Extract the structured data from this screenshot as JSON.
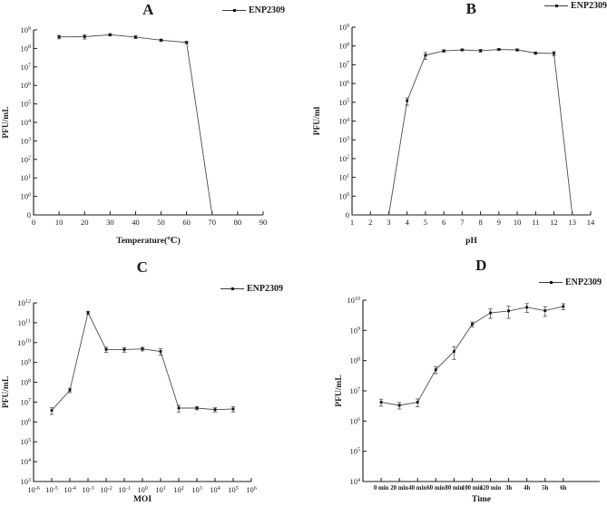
{
  "figure": {
    "background": "#ffffff",
    "axis_color": "#1a1a1a",
    "line_color": "#4d4d4d",
    "marker_color": "#111111",
    "text_color": "#1a1a1a"
  },
  "chart_data": [
    {
      "id": "panel-a",
      "type": "line",
      "title": "A",
      "legend": "ENP2309",
      "xlabel": "Temperature(℃)",
      "ylabel": "PFU/mL",
      "x_axis": {
        "type": "linear",
        "min": 0,
        "max": 90,
        "tick_step": 10
      },
      "y_axis": {
        "type": "log",
        "min_exp": 0,
        "max_exp": 9,
        "zero_tick": true
      },
      "x": [
        10,
        20,
        30,
        40,
        50,
        60,
        70
      ],
      "values": [
        420000000.0,
        430000000.0,
        550000000.0,
        410000000.0,
        280000000.0,
        210000000.0,
        0
      ],
      "errors": [
        90000000.0,
        110000000.0,
        80000000.0,
        70000000.0,
        40000000.0,
        30000000.0,
        0
      ],
      "grid": false,
      "legend_position": "top-right"
    },
    {
      "id": "panel-b",
      "type": "line",
      "title": "B",
      "legend": "ENP2309",
      "xlabel": "pH",
      "ylabel": "PFU/ml",
      "x_axis": {
        "type": "linear",
        "min": 1,
        "max": 14,
        "tick_step": 1
      },
      "y_axis": {
        "type": "log",
        "min_exp": 0,
        "max_exp": 9,
        "zero_tick": true
      },
      "x": [
        3,
        4,
        5,
        6,
        7,
        8,
        9,
        10,
        11,
        12,
        13
      ],
      "values": [
        0,
        120000.0,
        32000000.0,
        55000000.0,
        62000000.0,
        56000000.0,
        65000000.0,
        62000000.0,
        42000000.0,
        40000000.0,
        0
      ],
      "errors": [
        0,
        50000.0,
        13000000.0,
        8000000.0,
        7000000.0,
        9000000.0,
        7000000.0,
        8000000.0,
        6000000.0,
        10000000.0,
        0
      ],
      "grid": false,
      "legend_position": "top-right"
    },
    {
      "id": "panel-c",
      "type": "line",
      "title": "C",
      "legend": "ENP2309",
      "xlabel": "MOI",
      "ylabel": "PFU/mL",
      "x_axis": {
        "type": "log_ticks",
        "min_exp": -6,
        "max_exp": 6
      },
      "y_axis": {
        "type": "log",
        "min_exp": 3,
        "max_exp": 12,
        "zero_tick": false
      },
      "x": [
        -5,
        -4,
        -3,
        -2,
        -1,
        0,
        1,
        2,
        3,
        4,
        5
      ],
      "values": [
        3800000.0,
        40000000.0,
        320000000000.0,
        4500000000.0,
        4500000000.0,
        4800000000.0,
        3600000000.0,
        5000000.0,
        5000000.0,
        4200000.0,
        4500000.0
      ],
      "errors": [
        1400000.0,
        10000000.0,
        60000000000.0,
        1300000000.0,
        1200000000.0,
        1000000000.0,
        1300000000.0,
        1800000.0,
        900000.0,
        1000000.0,
        1300000.0
      ],
      "grid": false,
      "legend_position": "top-right"
    },
    {
      "id": "panel-d",
      "type": "line",
      "title": "D",
      "legend": "ENP2309",
      "xlabel": "Time",
      "ylabel": "PFU/mL",
      "x_axis": {
        "type": "category",
        "labels": [
          "0 min",
          "20 min",
          "40 min",
          "60 min",
          "80 min",
          "100 min",
          "120 min",
          "3h",
          "4h",
          "5h",
          "6h"
        ]
      },
      "y_axis": {
        "type": "log",
        "min_exp": 4,
        "max_exp": 10,
        "zero_tick": false
      },
      "x": [
        0,
        1,
        2,
        3,
        4,
        5,
        6,
        7,
        8,
        9,
        10
      ],
      "values": [
        4200000.0,
        3300000.0,
        4200000.0,
        50000000.0,
        200000000.0,
        1600000000.0,
        3800000000.0,
        4400000000.0,
        5800000000.0,
        4500000000.0,
        6200000000.0
      ],
      "errors": [
        1100000.0,
        800000.0,
        1200000.0,
        13000000.0,
        90000000.0,
        300000000.0,
        1300000000.0,
        1900000000.0,
        1900000000.0,
        1600000000.0,
        1400000000.0
      ],
      "grid": false,
      "legend_position": "top-right"
    }
  ]
}
